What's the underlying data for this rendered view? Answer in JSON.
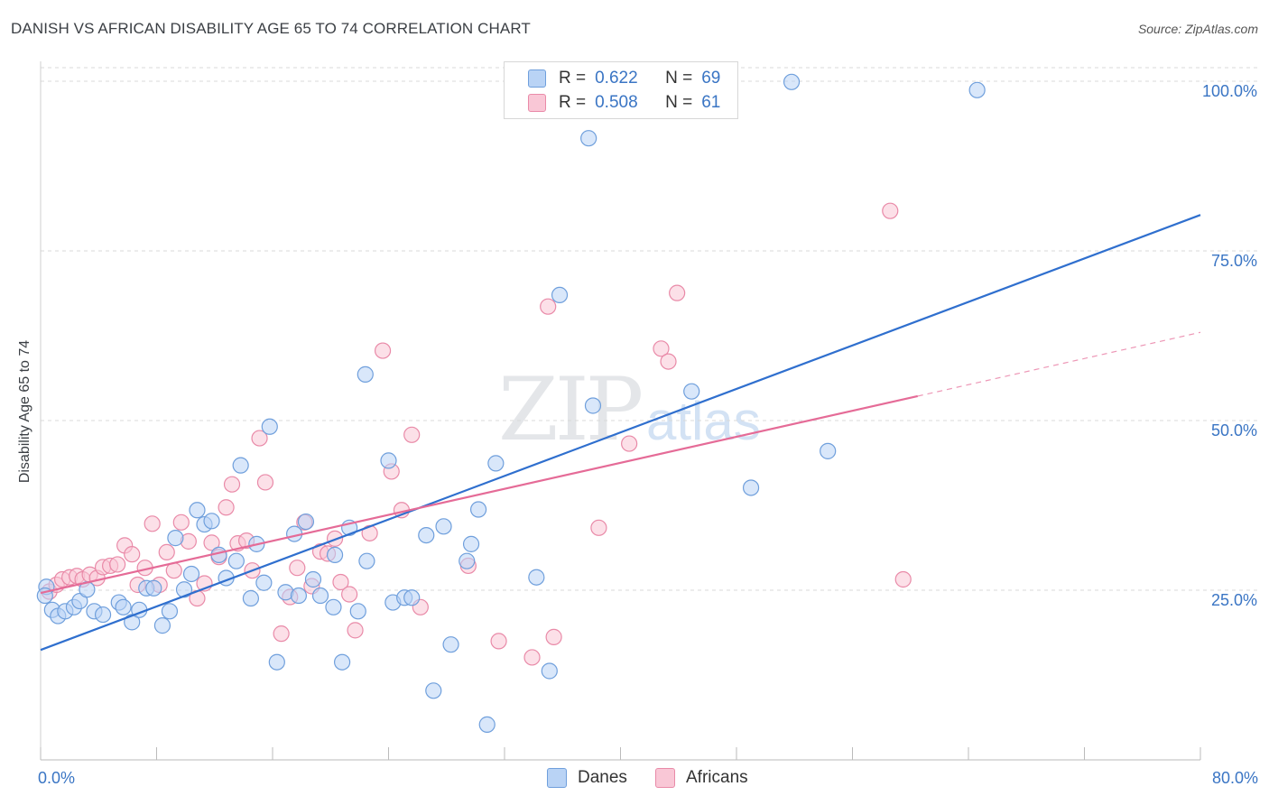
{
  "title": "DANISH VS AFRICAN DISABILITY AGE 65 TO 74 CORRELATION CHART",
  "source": "Source: ZipAtlas.com",
  "watermark": {
    "zip": "ZIP",
    "atlas": "atlas"
  },
  "legend": {
    "danes": {
      "r_label": "R =",
      "r_value": "0.622",
      "n_label": "N =",
      "n_value": "69"
    },
    "africans": {
      "r_label": "R =",
      "r_value": "0.508",
      "n_label": "N =",
      "n_value": "61"
    }
  },
  "bottom_legend": {
    "danes": "Danes",
    "africans": "Africans"
  },
  "colors": {
    "danes_fill": "#b9d3f5",
    "danes_stroke": "#6f9fdc",
    "danes_line": "#2f6fce",
    "africans_fill": "#f9c7d6",
    "africans_stroke": "#e98aa8",
    "africans_line": "#e56b97",
    "tick_text": "#3a75c4",
    "grid": "#d9d9d9"
  },
  "chart_data": {
    "type": "scatter",
    "title": "DANISH VS AFRICAN DISABILITY AGE 65 TO 74 CORRELATION CHART",
    "xlabel": "",
    "ylabel": "Disability Age 65 to 74",
    "xlim": [
      0,
      80
    ],
    "ylim": [
      0,
      102
    ],
    "x_tick_labels": [
      "0.0%",
      "80.0%"
    ],
    "y_ticks": [
      25,
      50,
      75,
      100
    ],
    "y_tick_labels": [
      "25.0%",
      "50.0%",
      "75.0%",
      "100.0%"
    ],
    "grid": true,
    "legend_placement": "top-center",
    "series": [
      {
        "name": "Danes",
        "r": 0.622,
        "n": 69,
        "trend": {
          "x": [
            0,
            80
          ],
          "y": [
            16.2,
            80.3
          ]
        },
        "points": [
          [
            0.4,
            25.5
          ],
          [
            0.8,
            22.1
          ],
          [
            1.2,
            21.2
          ],
          [
            1.7,
            21.9
          ],
          [
            2.3,
            22.5
          ],
          [
            2.7,
            23.4
          ],
          [
            3.2,
            25.1
          ],
          [
            3.7,
            21.9
          ],
          [
            4.3,
            21.4
          ],
          [
            5.4,
            23.2
          ],
          [
            5.7,
            22.5
          ],
          [
            6.3,
            20.3
          ],
          [
            6.8,
            22.1
          ],
          [
            7.3,
            25.3
          ],
          [
            7.8,
            25.3
          ],
          [
            8.4,
            19.8
          ],
          [
            8.9,
            21.9
          ],
          [
            9.3,
            32.7
          ],
          [
            9.9,
            25.1
          ],
          [
            10.4,
            27.4
          ],
          [
            10.8,
            36.8
          ],
          [
            11.3,
            34.7
          ],
          [
            11.8,
            35.2
          ],
          [
            12.3,
            30.2
          ],
          [
            12.8,
            26.8
          ],
          [
            13.5,
            29.3
          ],
          [
            13.8,
            43.4
          ],
          [
            14.5,
            23.8
          ],
          [
            14.9,
            31.8
          ],
          [
            15.4,
            26.1
          ],
          [
            15.8,
            49.1
          ],
          [
            16.3,
            14.4
          ],
          [
            16.9,
            24.7
          ],
          [
            17.5,
            33.3
          ],
          [
            17.8,
            24.2
          ],
          [
            18.3,
            35.1
          ],
          [
            18.8,
            26.6
          ],
          [
            19.3,
            24.2
          ],
          [
            20.2,
            22.5
          ],
          [
            20.3,
            30.2
          ],
          [
            20.8,
            14.4
          ],
          [
            21.3,
            34.2
          ],
          [
            21.9,
            21.9
          ],
          [
            22.4,
            56.8
          ],
          [
            22.5,
            29.3
          ],
          [
            24.0,
            44.1
          ],
          [
            24.3,
            23.2
          ],
          [
            25.1,
            23.9
          ],
          [
            25.6,
            23.9
          ],
          [
            26.6,
            33.1
          ],
          [
            27.1,
            10.2
          ],
          [
            27.8,
            34.4
          ],
          [
            28.3,
            17.0
          ],
          [
            29.4,
            29.3
          ],
          [
            29.7,
            31.8
          ],
          [
            30.2,
            36.9
          ],
          [
            30.8,
            5.2
          ],
          [
            31.4,
            43.7
          ],
          [
            34.2,
            26.9
          ],
          [
            35.1,
            13.1
          ],
          [
            35.8,
            68.5
          ],
          [
            37.8,
            91.6
          ],
          [
            38.1,
            52.2
          ],
          [
            44.9,
            54.3
          ],
          [
            49.0,
            40.1
          ],
          [
            51.8,
            99.9
          ],
          [
            54.3,
            45.5
          ],
          [
            64.6,
            98.7
          ],
          [
            0.3,
            24.2
          ]
        ]
      },
      {
        "name": "Africans",
        "r": 0.508,
        "n": 61,
        "trend": {
          "x": [
            0,
            60.5
          ],
          "y": [
            24.6,
            53.6
          ]
        },
        "trend_dashed": {
          "x": [
            60.5,
            80
          ],
          "y": [
            53.6,
            63.0
          ]
        },
        "points": [
          [
            0.6,
            24.8
          ],
          [
            1.1,
            25.8
          ],
          [
            1.5,
            26.6
          ],
          [
            2.0,
            26.9
          ],
          [
            2.5,
            27.1
          ],
          [
            2.9,
            26.6
          ],
          [
            3.4,
            27.3
          ],
          [
            3.9,
            26.8
          ],
          [
            4.3,
            28.4
          ],
          [
            4.8,
            28.6
          ],
          [
            5.3,
            28.8
          ],
          [
            5.8,
            31.6
          ],
          [
            6.3,
            30.3
          ],
          [
            6.7,
            25.8
          ],
          [
            7.2,
            28.3
          ],
          [
            7.7,
            34.8
          ],
          [
            8.2,
            25.8
          ],
          [
            8.7,
            30.6
          ],
          [
            9.2,
            27.9
          ],
          [
            9.7,
            35.0
          ],
          [
            10.2,
            32.2
          ],
          [
            10.8,
            23.8
          ],
          [
            11.3,
            26.0
          ],
          [
            11.8,
            32.0
          ],
          [
            12.3,
            29.9
          ],
          [
            12.8,
            37.2
          ],
          [
            13.2,
            40.6
          ],
          [
            13.6,
            31.9
          ],
          [
            14.2,
            32.3
          ],
          [
            14.6,
            27.9
          ],
          [
            15.1,
            47.4
          ],
          [
            15.5,
            40.9
          ],
          [
            16.6,
            18.6
          ],
          [
            17.2,
            24.0
          ],
          [
            17.7,
            28.3
          ],
          [
            18.2,
            35.0
          ],
          [
            18.7,
            25.6
          ],
          [
            19.3,
            30.7
          ],
          [
            19.8,
            30.4
          ],
          [
            20.3,
            32.6
          ],
          [
            20.7,
            26.2
          ],
          [
            21.3,
            24.4
          ],
          [
            21.7,
            19.1
          ],
          [
            22.7,
            33.4
          ],
          [
            23.6,
            60.3
          ],
          [
            24.2,
            42.5
          ],
          [
            24.9,
            36.8
          ],
          [
            25.6,
            47.9
          ],
          [
            26.2,
            22.5
          ],
          [
            29.5,
            28.6
          ],
          [
            31.6,
            17.5
          ],
          [
            33.9,
            15.1
          ],
          [
            35.0,
            66.8
          ],
          [
            35.4,
            18.1
          ],
          [
            38.5,
            34.2
          ],
          [
            40.6,
            46.6
          ],
          [
            42.8,
            60.6
          ],
          [
            43.3,
            58.7
          ],
          [
            43.9,
            68.8
          ],
          [
            58.6,
            80.9
          ],
          [
            59.5,
            26.6
          ]
        ]
      }
    ]
  }
}
